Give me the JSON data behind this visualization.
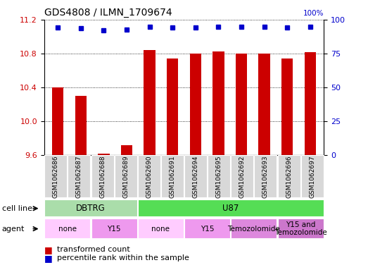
{
  "title": "GDS4808 / ILMN_1709674",
  "samples": [
    "GSM1062686",
    "GSM1062687",
    "GSM1062688",
    "GSM1062689",
    "GSM1062690",
    "GSM1062691",
    "GSM1062694",
    "GSM1062695",
    "GSM1062692",
    "GSM1062693",
    "GSM1062696",
    "GSM1062697"
  ],
  "transformed_count": [
    10.4,
    10.3,
    9.62,
    9.72,
    10.84,
    10.74,
    10.8,
    10.82,
    10.8,
    10.8,
    10.74,
    10.81
  ],
  "percentile_rank": [
    97,
    96,
    93,
    94,
    98,
    97,
    97,
    98,
    98,
    98,
    97,
    98
  ],
  "ylim_left": [
    9.6,
    11.2
  ],
  "ylim_right": [
    0,
    100
  ],
  "yticks_left": [
    9.6,
    10.0,
    10.4,
    10.8,
    11.2
  ],
  "yticks_right": [
    0,
    25,
    50,
    75,
    100
  ],
  "bar_color": "#cc0000",
  "dot_color": "#0000cc",
  "bar_width": 0.5,
  "cell_line_groups": [
    {
      "label": "DBTRG",
      "start": 0,
      "end": 3,
      "color": "#aaddaa"
    },
    {
      "label": "U87",
      "start": 4,
      "end": 11,
      "color": "#55dd55"
    }
  ],
  "agent_groups": [
    {
      "label": "none",
      "start": 0,
      "end": 1,
      "color": "#ffccff"
    },
    {
      "label": "Y15",
      "start": 2,
      "end": 3,
      "color": "#ee99ee"
    },
    {
      "label": "none",
      "start": 4,
      "end": 5,
      "color": "#ffccff"
    },
    {
      "label": "Y15",
      "start": 6,
      "end": 7,
      "color": "#ee99ee"
    },
    {
      "label": "Temozolomide",
      "start": 8,
      "end": 9,
      "color": "#dd88dd"
    },
    {
      "label": "Y15 and\nTemozolomide",
      "start": 10,
      "end": 11,
      "color": "#cc77cc"
    }
  ]
}
